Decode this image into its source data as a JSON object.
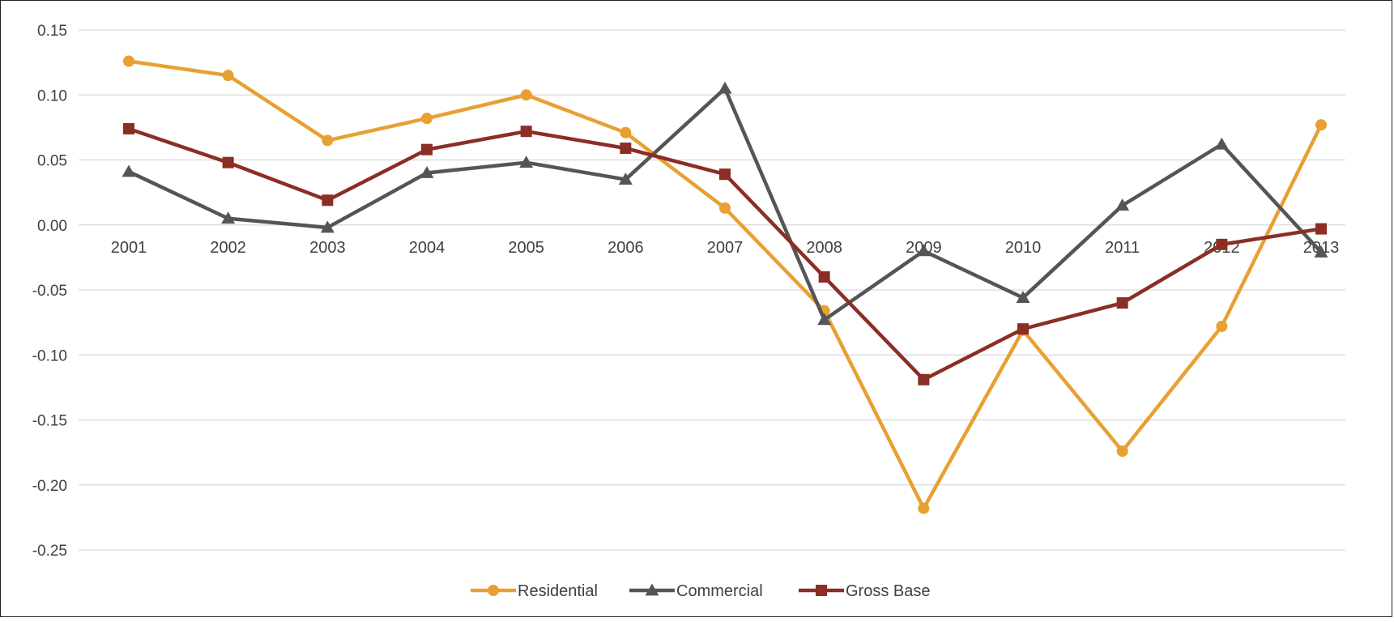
{
  "chart_data": {
    "type": "line",
    "title": "",
    "xlabel": "",
    "ylabel": "",
    "categories": [
      "2001",
      "2002",
      "2003",
      "2004",
      "2005",
      "2006",
      "2007",
      "2008",
      "2009",
      "2010",
      "2011",
      "2012",
      "2013"
    ],
    "ylim": [
      -0.25,
      0.15
    ],
    "yticks": [
      "0.15",
      "0.10",
      "0.05",
      "0.00",
      "-0.05",
      "-0.10",
      "-0.15",
      "-0.20",
      "-0.25"
    ],
    "ytick_values": [
      0.15,
      0.1,
      0.05,
      0.0,
      -0.05,
      -0.1,
      -0.15,
      -0.2,
      -0.25
    ],
    "grid": true,
    "legend_position": "bottom",
    "series": [
      {
        "name": "Residential",
        "color": "#E8A033",
        "marker": "circle",
        "values": [
          0.126,
          0.115,
          0.065,
          0.082,
          0.1,
          0.071,
          0.013,
          -0.066,
          -0.218,
          -0.081,
          -0.174,
          -0.078,
          0.077
        ]
      },
      {
        "name": "Commercial",
        "color": "#555555",
        "marker": "triangle",
        "values": [
          0.041,
          0.005,
          -0.002,
          0.04,
          0.048,
          0.035,
          0.105,
          -0.073,
          -0.02,
          -0.056,
          0.015,
          0.062,
          -0.021
        ]
      },
      {
        "name": "Gross Base",
        "color": "#8B2E26",
        "marker": "square",
        "values": [
          0.074,
          0.048,
          0.019,
          0.058,
          0.072,
          0.059,
          0.039,
          -0.04,
          -0.119,
          -0.08,
          -0.06,
          -0.015,
          -0.003
        ]
      }
    ]
  }
}
